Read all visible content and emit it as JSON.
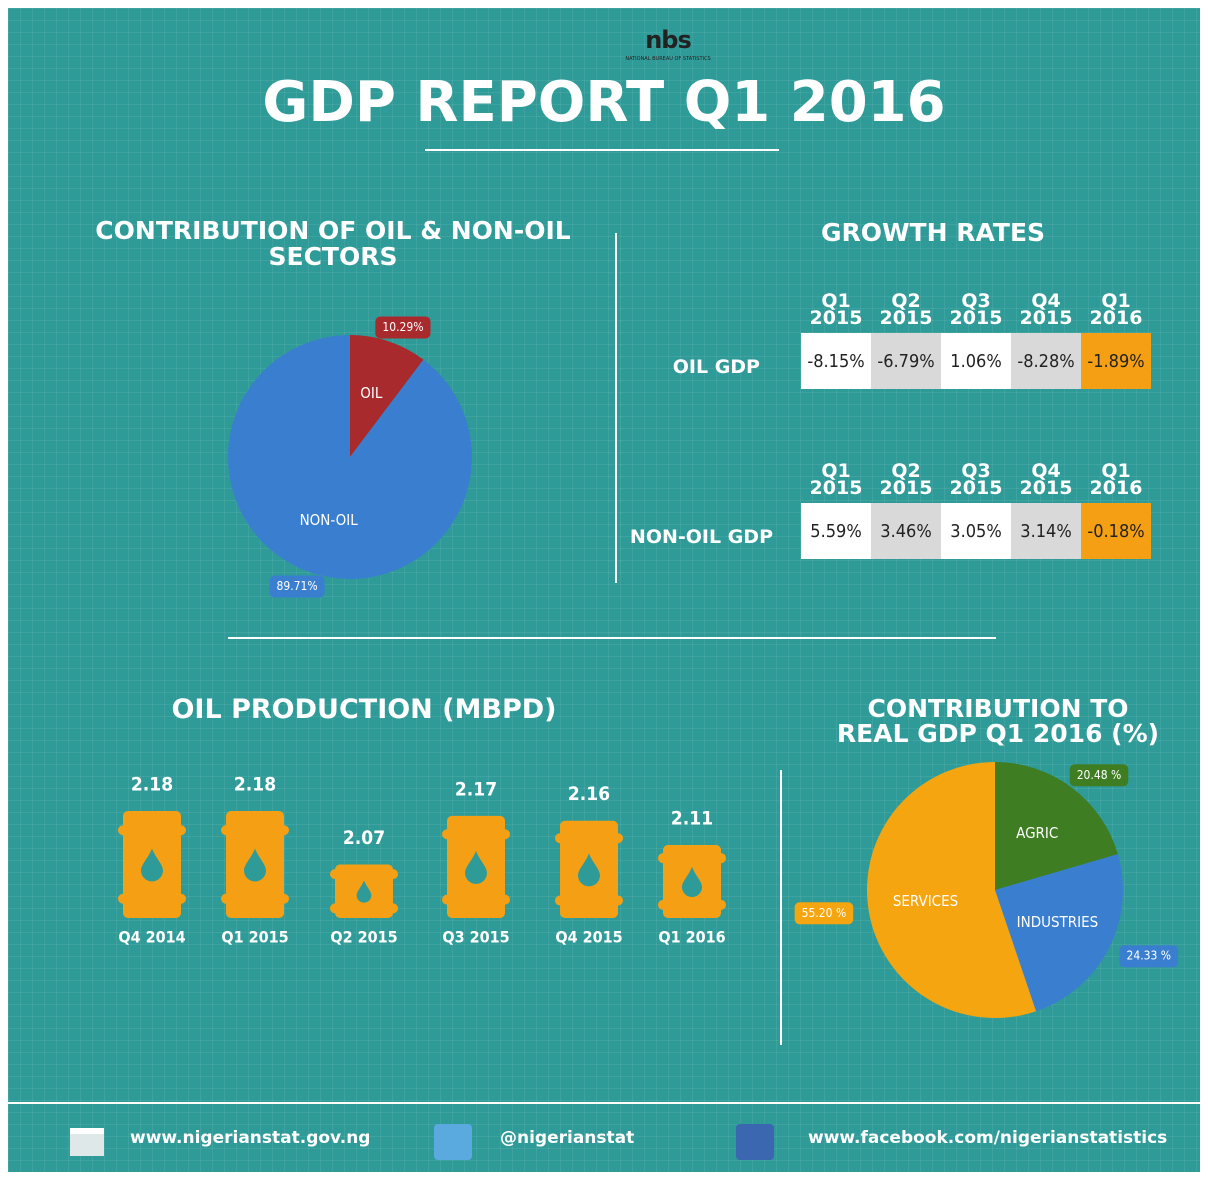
{
  "header": {
    "logo": "nbs",
    "logo_sub": "NATIONAL BUREAU OF STATISTICS",
    "title": "GDP REPORT Q1 2016"
  },
  "chart_data": [
    {
      "type": "pie",
      "title": "CONTRIBUTION OF OIL & NON-OIL SECTORS",
      "categories": [
        "OIL",
        "NON-OIL"
      ],
      "values": [
        10.29,
        89.71
      ],
      "value_labels": [
        "10.29%",
        "89.71%"
      ],
      "colors": [
        "#a82a2c",
        "#3a7fcf"
      ]
    },
    {
      "type": "bar",
      "title": "OIL PRODUCTION (MBPD)",
      "categories": [
        "Q4 2014",
        "Q1 2015",
        "Q2 2015",
        "Q3 2015",
        "Q4 2015",
        "Q1 2016"
      ],
      "values": [
        2.18,
        2.18,
        2.07,
        2.17,
        2.16,
        2.11
      ],
      "color": "#f5a014",
      "ylim": [
        1.96,
        2.18
      ]
    },
    {
      "type": "pie",
      "title": "CONTRIBUTION TO REAL GDP Q1 2016 (%)",
      "categories": [
        "AGRIC",
        "INDUSTRIES",
        "SERVICES"
      ],
      "values": [
        20.48,
        24.33,
        55.2
      ],
      "value_labels": [
        "20.48 %",
        "24.33 %",
        "55.20 %"
      ],
      "colors": [
        "#3e7d22",
        "#3a7fcf",
        "#f5a50f"
      ]
    }
  ],
  "growth_rates": {
    "title": "GROWTH RATES",
    "tables": [
      {
        "label": "OIL GDP",
        "columns": [
          "Q1 2015",
          "Q2 2015",
          "Q3 2015",
          "Q4 2015",
          "Q1 2016"
        ],
        "cells": [
          "-8.15%",
          "-6.79%",
          "1.06%",
          "-8.28%",
          "-1.89%"
        ]
      },
      {
        "label": "NON-OIL GDP",
        "columns": [
          "Q1 2015",
          "Q2 2015",
          "Q3 2015",
          "Q4 2015",
          "Q1 2016"
        ],
        "cells": [
          "5.59%",
          "3.46%",
          "3.05%",
          "3.14%",
          "-0.18%"
        ]
      }
    ]
  },
  "footer": {
    "website": "www.nigerianstat.gov.ng",
    "twitter": "@nigerianstat",
    "facebook": "www.facebook.com/nigerianstatistics"
  }
}
